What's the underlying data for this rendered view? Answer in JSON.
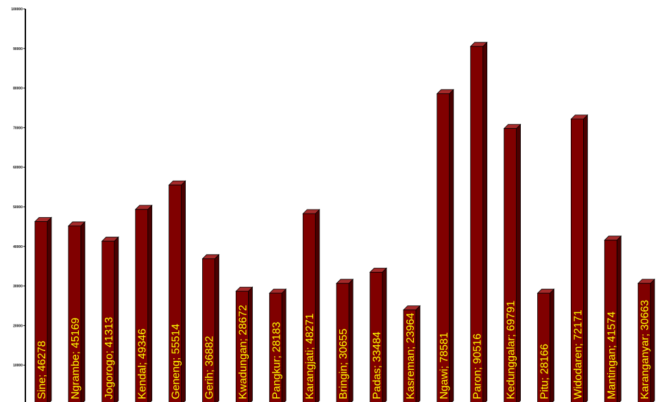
{
  "colors": {
    "bar_front": "#800000",
    "bar_side": "#4a0000",
    "bar_top": "#a52a2a",
    "label": "#ffff00",
    "axis": "#000000"
  },
  "chart_data": {
    "type": "bar",
    "title": "",
    "xlabel": "",
    "ylabel": "",
    "ylim": [
      0,
      100000
    ],
    "yticks": [
      10000,
      20000,
      30000,
      40000,
      50000,
      60000,
      70000,
      80000,
      90000,
      100000
    ],
    "ytick_labels": [
      "10000",
      "20000",
      "30000",
      "40000",
      "50000",
      "60000",
      "70000",
      "80000",
      "90000",
      "100000"
    ],
    "grid": false,
    "legend": "none",
    "categories": [
      "Sine",
      "Ngrambe",
      "Jogorogo",
      "Kendal",
      "Geneng",
      "Gerih",
      "Kwadungan",
      "Pangkur",
      "Karangjati",
      "Bringin",
      "Padas",
      "Kasreman",
      "Ngawi",
      "Paron",
      "Kedunggalar",
      "Pitu",
      "Widodaren",
      "Mantingan",
      "Karanganyar"
    ],
    "values": [
      46278,
      45169,
      41313,
      49346,
      55514,
      36882,
      28672,
      28183,
      48271,
      30655,
      33484,
      23964,
      78581,
      90516,
      69791,
      28166,
      72171,
      41574,
      30663
    ],
    "data_labels": [
      "Sine; 46278",
      "Ngrambe; 45169",
      "Jogorogo; 41313",
      "Kendal; 49346",
      "Geneng; 55514",
      "Gerih; 36882",
      "Kwadungan; 28672",
      "Pangkur; 28183",
      "Karangjati; 48271",
      "Bringin; 30655",
      "Padas; 33484",
      "Kasreman; 23964",
      "Ngawi; 78581",
      "Paron; 90516",
      "Kedunggalar; 69791",
      "Pitu; 28166",
      "Widodaren; 72171",
      "Mantingan; 41574",
      "Karanganyar; 30663"
    ]
  }
}
